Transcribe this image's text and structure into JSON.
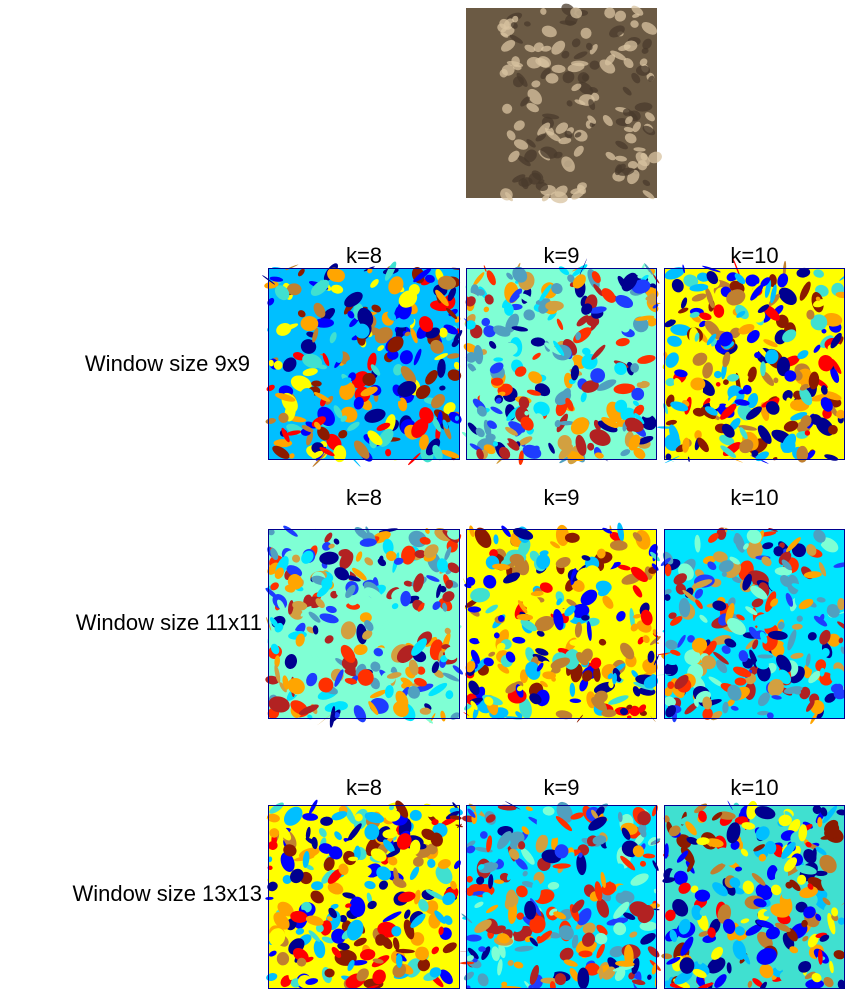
{
  "rows": [
    {
      "label": "Window size 9x9",
      "columns": [
        "k=8",
        "k=9",
        "k=10"
      ]
    },
    {
      "label": "Window size 11x11",
      "columns": [
        "k=8",
        "k=9",
        "k=10"
      ]
    },
    {
      "label": "Window size 13x13",
      "columns": [
        "k=8",
        "k=9",
        "k=10"
      ]
    }
  ]
}
